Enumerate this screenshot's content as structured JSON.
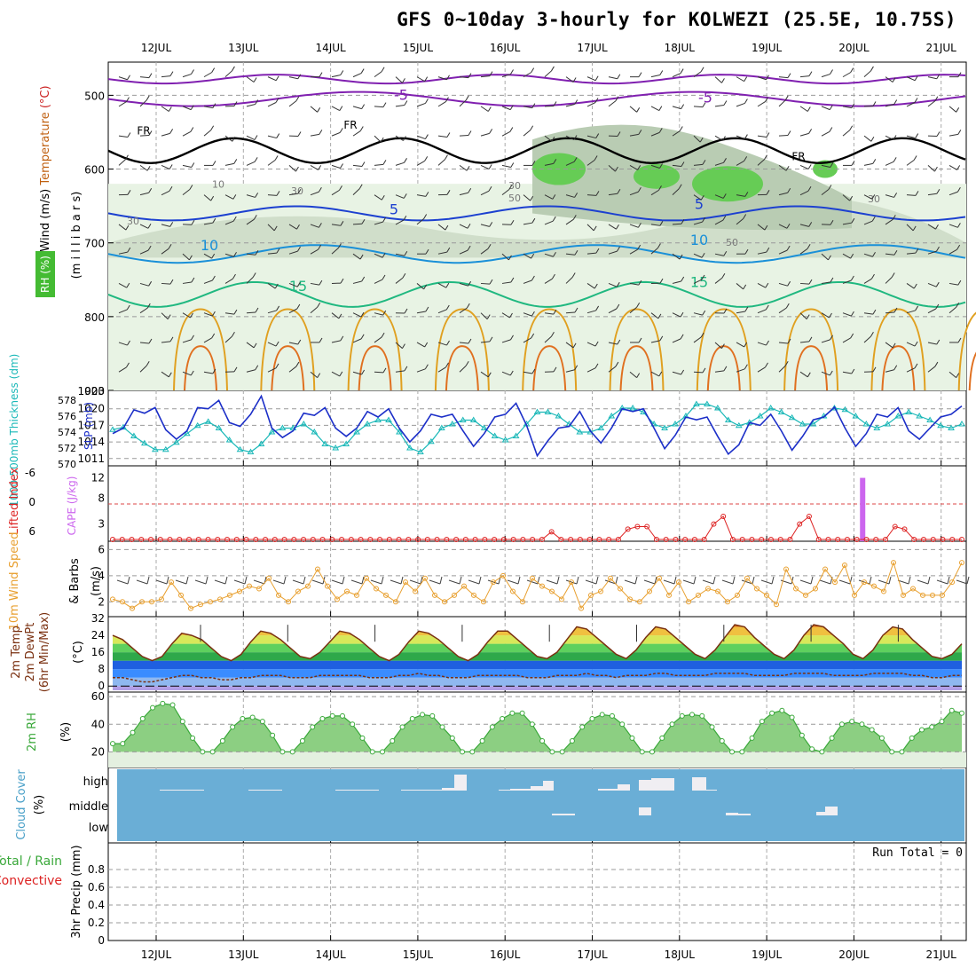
{
  "title": "GFS 0~10day 3-hourly for KOLWEZI (25.5E, 10.75S)",
  "date_labels": [
    "12JUL",
    "13JUL",
    "14JUL",
    "15JUL",
    "16JUL",
    "17JUL",
    "18JUL",
    "19JUL",
    "20JUL",
    "21JUL"
  ],
  "panels": {
    "upper": {
      "ylabel_parts": [
        {
          "text": "Wind (m/s)",
          "color": "#000000"
        },
        {
          "text": "Temperature",
          "color": "#c06010"
        },
        {
          "text": "(°C)",
          "color": "#cc2222"
        }
      ],
      "ylabel_mb": "(m i l l i b a r s)",
      "rh_label": "RH (%)",
      "y_ticks": [
        "500",
        "600",
        "700",
        "800",
        "900"
      ],
      "contour_labels": [
        "FR",
        "FR",
        "FR",
        "-5",
        "-5",
        "5",
        "5",
        "10",
        "10",
        "15",
        "15",
        "10",
        "30",
        "30",
        "50",
        "50",
        "30",
        "30"
      ]
    },
    "slp": {
      "label_thickness": "1000-500mb Thickness (dm)",
      "label_slp": "SLP (mb)",
      "left_ticks": [
        "578",
        "576",
        "574",
        "572",
        "570"
      ],
      "right_ticks": [
        "1020",
        "1017",
        "1014",
        "1011"
      ],
      "top_tick_overlap": "1023"
    },
    "cape": {
      "label_li": "Lifted Index",
      "label_cape": "CAPE (J/kg)",
      "left_ticks": [
        "-6",
        "0",
        "6"
      ],
      "right_ticks": [
        "12",
        "8",
        "3"
      ]
    },
    "wind10": {
      "label_speed": "10m Wind Speed",
      "label_barbs": "& Barbs",
      "units": "(m/s)",
      "ticks": [
        "6",
        "4",
        "2"
      ]
    },
    "temp2m": {
      "label": "2m Temp 2m DewPt (6hr Min/Max)",
      "units": "(°C)",
      "ticks": [
        "32",
        "24",
        "16",
        "8",
        "0"
      ]
    },
    "rh2m": {
      "label": "2m RH",
      "units": "(%)",
      "ticks": [
        "60",
        "40",
        "20"
      ]
    },
    "cloud": {
      "label": "Cloud Cover",
      "units": "(%)",
      "levels": [
        "high",
        "middle",
        "low"
      ]
    },
    "precip": {
      "label_total": "Total / Rain",
      "label_conv": "Convective",
      "units": "3hr Precip (mm)",
      "ticks": [
        "0.8",
        "0.6",
        "0.4",
        "0.2",
        "0"
      ],
      "run_total": "Run Total = 0"
    }
  },
  "chart_data": [
    {
      "type": "line",
      "panel": "slp",
      "series": [
        {
          "name": "SLP (mb)",
          "color": "#1c2fc8",
          "values": [
            1015.5,
            1016.5,
            1019.8,
            1019.2,
            1020.2,
            1016.2,
            1014.5,
            1016.0,
            1020.2,
            1020.0,
            1021.5,
            1017.5,
            1016.8,
            1019.0,
            1022.3,
            1016.5,
            1014.8,
            1016.0,
            1019.2,
            1018.8,
            1020.2,
            1016.5,
            1015.0,
            1016.5,
            1019.5,
            1018.5,
            1020.0,
            1016.5,
            1014.0,
            1016.0,
            1019.0,
            1018.5,
            1019.0,
            1016.0,
            1013.2,
            1015.5,
            1018.5,
            1019.0,
            1021.0,
            1017.0,
            1011.5,
            1014.2,
            1016.5,
            1016.8,
            1019.5,
            1016.0,
            1013.8,
            1016.5,
            1020.0,
            1019.5,
            1020.0,
            1016.5,
            1012.8,
            1015.2,
            1018.5,
            1018.0,
            1018.5,
            1015.0,
            1011.8,
            1013.5,
            1017.5,
            1017.0,
            1019.0,
            1016.0,
            1012.5,
            1015.0,
            1018.0,
            1018.5,
            1020.3,
            1016.5,
            1013.2,
            1015.5,
            1019.0,
            1018.5,
            1020.2,
            1016.0,
            1014.5,
            1016.5,
            1018.5,
            1019.0,
            1020.5
          ]
        },
        {
          "name": "1000-500mb Thickness (dm)",
          "color": "#1ab8b8",
          "values": [
            574.3,
            574.6,
            573.5,
            572.6,
            571.8,
            571.8,
            572.7,
            573.8,
            574.8,
            575.3,
            574.5,
            573.0,
            571.8,
            571.5,
            572.5,
            574.0,
            574.5,
            574.5,
            575.0,
            574.0,
            572.5,
            572.0,
            572.5,
            574.0,
            575.0,
            575.5,
            575.5,
            574.0,
            572.0,
            571.5,
            572.8,
            574.5,
            575.0,
            575.5,
            575.5,
            574.5,
            573.5,
            573.0,
            573.5,
            575.0,
            576.5,
            576.5,
            576.0,
            575.0,
            574.0,
            574.0,
            574.5,
            576.0,
            577.0,
            577.0,
            576.5,
            575.0,
            574.5,
            575.0,
            576.0,
            577.5,
            577.5,
            577.0,
            575.5,
            574.8,
            575.2,
            576.0,
            577.0,
            576.5,
            575.8,
            575.0,
            575.0,
            576.0,
            577.0,
            576.8,
            576.0,
            575.0,
            574.5,
            575.0,
            576.0,
            576.5,
            576.0,
            575.5,
            574.8,
            574.5,
            575.0
          ]
        }
      ],
      "y_range_slp": [
        1010,
        1023
      ],
      "y_range_thickness": [
        570,
        579
      ]
    },
    {
      "type": "line",
      "panel": "cape",
      "series": [
        {
          "name": "CAPE (J/kg)",
          "color": "#dd2222",
          "values": [
            0,
            0,
            0,
            0,
            0,
            0,
            0,
            0,
            0,
            0,
            0,
            0,
            0,
            0,
            0,
            0,
            0,
            0,
            0,
            0,
            0,
            0,
            0,
            0,
            0,
            0,
            0,
            0,
            0,
            0,
            0,
            0,
            0,
            0,
            0,
            0,
            0,
            0,
            0,
            0,
            0,
            0,
            0,
            0,
            0,
            0,
            1.5,
            0,
            0,
            0,
            0,
            0,
            0,
            0,
            2,
            2.5,
            2.5,
            0,
            0,
            0,
            0,
            0,
            0,
            3,
            4.5,
            0,
            0,
            0,
            0,
            0,
            0,
            0,
            3,
            4.5,
            0,
            0,
            0,
            0,
            0,
            0,
            0,
            0,
            2.5,
            2,
            0,
            0,
            0,
            0,
            0,
            0
          ]
        },
        {
          "name": "Lifted Index",
          "color": "#cc66ff",
          "values": []
        }
      ],
      "highlight_bar": {
        "day_offset": 8.1,
        "value": 12
      }
    },
    {
      "type": "line",
      "panel": "wind10",
      "series": [
        {
          "name": "10m Wind Speed (m/s)",
          "color": "#e8a030",
          "values": [
            2.2,
            2.0,
            1.5,
            2.0,
            2.0,
            2.2,
            3.5,
            2.5,
            1.5,
            1.8,
            2.0,
            2.2,
            2.5,
            2.8,
            3.2,
            3.0,
            3.8,
            2.5,
            2.0,
            2.8,
            3.2,
            4.5,
            3.2,
            2.2,
            2.8,
            2.5,
            3.8,
            3.0,
            2.5,
            2.0,
            3.5,
            2.8,
            3.8,
            2.5,
            2.0,
            2.5,
            3.2,
            2.5,
            2.0,
            3.5,
            4.0,
            2.8,
            2.0,
            3.8,
            3.2,
            2.8,
            2.2,
            3.5,
            1.5,
            2.5,
            2.8,
            3.8,
            3.0,
            2.2,
            2.0,
            2.8,
            3.8,
            2.5,
            3.5,
            2.0,
            2.5,
            3.0,
            2.8,
            2.0,
            2.5,
            3.8,
            3.0,
            2.5,
            1.8,
            4.5,
            3.0,
            2.5,
            3.0,
            4.5,
            3.5,
            4.8,
            2.5,
            3.5,
            3.2,
            2.8,
            5.0,
            2.5,
            3.0,
            2.5,
            2.5,
            2.5,
            3.5,
            5.0
          ]
        }
      ],
      "y_range": [
        1,
        6.5
      ]
    },
    {
      "type": "area",
      "panel": "temp2m",
      "series": [
        {
          "name": "2m Temp (°C)",
          "color": "#7a3010",
          "values": [
            24,
            22,
            18,
            14,
            12,
            14,
            20,
            25,
            24,
            22,
            18,
            14,
            12,
            15,
            21,
            26,
            25,
            22,
            18,
            14,
            13,
            16,
            21,
            26,
            25,
            22,
            18,
            14,
            12,
            15,
            21,
            26,
            25,
            22,
            18,
            14,
            12,
            15,
            21,
            26,
            26,
            22,
            18,
            14,
            13,
            16,
            22,
            28,
            27,
            23,
            19,
            15,
            13,
            17,
            23,
            28,
            27,
            23,
            19,
            15,
            13,
            17,
            23,
            29,
            28,
            23,
            19,
            15,
            13,
            17,
            24,
            29,
            28,
            24,
            20,
            15,
            13,
            17,
            24,
            28,
            27,
            22,
            18,
            14,
            13,
            15,
            20
          ]
        },
        {
          "name": "2m DewPt (°C)",
          "color": "#7a3010",
          "values": [
            4,
            4,
            3,
            2,
            2,
            3,
            4,
            5,
            5,
            4,
            4,
            3,
            3,
            4,
            4,
            5,
            5,
            5,
            4,
            4,
            4,
            5,
            5,
            5,
            5,
            5,
            4,
            4,
            4,
            5,
            5,
            6,
            5,
            5,
            4,
            4,
            4,
            5,
            5,
            5,
            5,
            5,
            4,
            4,
            4,
            5,
            5,
            5,
            6,
            5,
            5,
            4,
            5,
            5,
            5,
            6,
            6,
            5,
            5,
            5,
            5,
            6,
            6,
            6,
            6,
            5,
            5,
            5,
            5,
            6,
            6,
            6,
            6,
            5,
            5,
            5,
            5,
            6,
            6,
            6,
            6,
            5,
            5,
            4,
            4,
            5,
            5
          ]
        }
      ],
      "y_range": [
        -2,
        32
      ]
    },
    {
      "type": "area",
      "panel": "rh2m",
      "series": [
        {
          "name": "2m RH (%)",
          "color": "#3aa83a",
          "values": [
            26,
            26,
            34,
            44,
            52,
            55,
            54,
            42,
            30,
            20,
            20,
            28,
            38,
            44,
            45,
            42,
            32,
            20,
            20,
            28,
            38,
            44,
            46,
            46,
            40,
            30,
            20,
            20,
            28,
            38,
            44,
            47,
            46,
            38,
            30,
            20,
            20,
            28,
            38,
            44,
            48,
            48,
            40,
            28,
            20,
            20,
            28,
            38,
            44,
            47,
            46,
            40,
            30,
            20,
            20,
            30,
            40,
            46,
            47,
            46,
            38,
            28,
            20,
            20,
            30,
            42,
            48,
            50,
            45,
            32,
            22,
            20,
            30,
            40,
            42,
            40,
            36,
            30,
            20,
            20,
            30,
            36,
            38,
            42,
            50,
            48
          ]
        }
      ],
      "y_range": [
        10,
        62
      ]
    },
    {
      "type": "bar",
      "panel": "cloud",
      "series": [
        {
          "name": "high",
          "values": []
        },
        {
          "name": "middle",
          "values": []
        },
        {
          "name": "low",
          "values": []
        }
      ]
    },
    {
      "type": "bar",
      "panel": "precip",
      "series": [
        {
          "name": "3hr Precip (mm)",
          "values": []
        }
      ],
      "y_range": [
        0,
        1
      ]
    }
  ]
}
